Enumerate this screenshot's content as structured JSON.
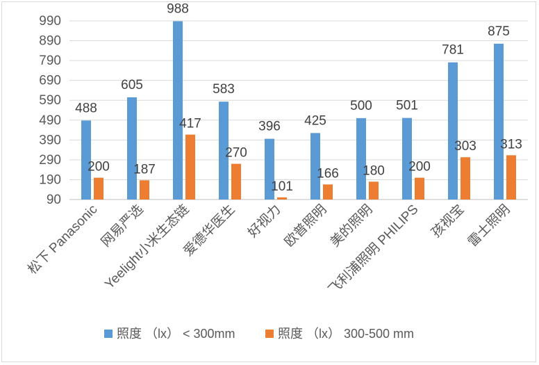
{
  "chart_data": {
    "type": "bar",
    "title": "",
    "xlabel": "",
    "ylabel": "",
    "ylim": [
      90,
      990
    ],
    "yticks": [
      90,
      190,
      290,
      390,
      490,
      590,
      690,
      790,
      890,
      990
    ],
    "grid": true,
    "legend_position": "bottom",
    "categories": [
      "松下 Panasonic",
      "网易严选",
      "Yeelight小米生态链",
      "爱德华医生",
      "好视力",
      "欧普照明",
      "美的照明",
      "飞利浦照明 PHILIPS",
      "孩视宝",
      "雷士照明"
    ],
    "series": [
      {
        "name": "照度 （lx） < 300mm",
        "color": "#5b9bd5",
        "values": [
          488,
          605,
          988,
          583,
          396,
          425,
          500,
          501,
          781,
          875
        ]
      },
      {
        "name": "照度 （lx） 300-500 mm",
        "color": "#ed7d31",
        "values": [
          200,
          187,
          417,
          270,
          101,
          166,
          180,
          200,
          303,
          313
        ]
      }
    ],
    "highlight_label": {
      "series": 1,
      "index": 4,
      "color": "#ff0000"
    }
  }
}
